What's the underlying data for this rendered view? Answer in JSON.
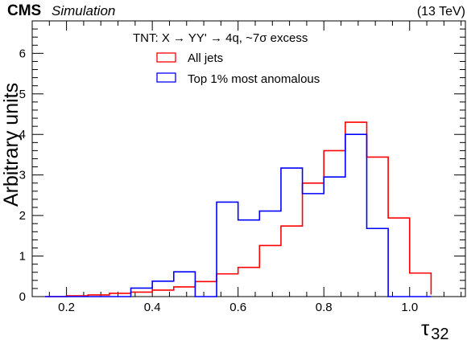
{
  "header": {
    "experiment": "CMS",
    "status": "Simulation",
    "energy": "(13 TeV)"
  },
  "chart_data": {
    "type": "histogram",
    "xlabel": "τ",
    "xlabel_subscript": "32",
    "ylabel": "Arbitrary units",
    "xlim": [
      0.12,
      1.13
    ],
    "ylim": [
      0,
      6.8
    ],
    "grid": false,
    "legend_position": "top-center",
    "x_ticks": [
      {
        "value": 0.2,
        "label": "0.2"
      },
      {
        "value": 0.4,
        "label": "0.4"
      },
      {
        "value": 0.6,
        "label": "0.6"
      },
      {
        "value": 0.8,
        "label": "0.8"
      },
      {
        "value": 1.0,
        "label": "1.0"
      }
    ],
    "y_ticks": [
      {
        "value": 0,
        "label": "0"
      },
      {
        "value": 1,
        "label": "1"
      },
      {
        "value": 2,
        "label": "2"
      },
      {
        "value": 3,
        "label": "3"
      },
      {
        "value": 4,
        "label": "4"
      },
      {
        "value": 5,
        "label": "5"
      },
      {
        "value": 6,
        "label": "6"
      }
    ],
    "legend_title": "TNT: X  →  YY'  →  4q,  ~7σ excess",
    "bin_edges": [
      0.15,
      0.2,
      0.25,
      0.3,
      0.35,
      0.4,
      0.45,
      0.5,
      0.55,
      0.6,
      0.65,
      0.7,
      0.75,
      0.8,
      0.85,
      0.9,
      0.95,
      1.0,
      1.05
    ],
    "series": [
      {
        "name": "All jets",
        "color": "#ff0000",
        "values": [
          0.0,
          0.02,
          0.04,
          0.08,
          0.11,
          0.16,
          0.24,
          0.37,
          0.56,
          0.72,
          1.26,
          1.74,
          2.8,
          3.6,
          4.3,
          3.44,
          1.94,
          0.58,
          0.05
        ]
      },
      {
        "name": "Top 1% most anomalous",
        "color": "#0000ff",
        "values": [
          0.0,
          0.0,
          0.0,
          0.0,
          0.21,
          0.38,
          0.61,
          0.0,
          2.33,
          1.89,
          2.11,
          3.17,
          2.54,
          2.95,
          4.0,
          1.68,
          0.0,
          0.0,
          0.0
        ]
      }
    ]
  }
}
